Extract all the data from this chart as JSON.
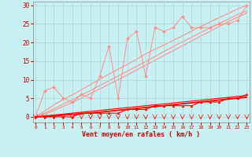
{
  "background_color": "#c8f0f0",
  "grid_color": "#a8d8d8",
  "line_color_light": "#ff9090",
  "line_color_dark": "#ff0000",
  "xlabel": "Vent moyen/en rafales ( km/h )",
  "xlabel_color": "#cc0000",
  "tick_color": "#cc0000",
  "ylim": [
    -1.5,
    31
  ],
  "xlim": [
    -0.3,
    23.3
  ],
  "yticks": [
    0,
    5,
    10,
    15,
    20,
    25,
    30
  ],
  "xticks": [
    0,
    1,
    2,
    3,
    4,
    5,
    6,
    7,
    8,
    9,
    10,
    11,
    12,
    13,
    14,
    15,
    16,
    17,
    18,
    19,
    20,
    21,
    22,
    23
  ],
  "x": [
    0,
    1,
    2,
    3,
    4,
    5,
    6,
    7,
    8,
    9,
    10,
    11,
    12,
    13,
    14,
    15,
    16,
    17,
    18,
    19,
    20,
    21,
    22,
    23
  ],
  "rafales_data": [
    0,
    7,
    8,
    5,
    4,
    6,
    5,
    11,
    19,
    5,
    21,
    23,
    11,
    24,
    23,
    24,
    27,
    24,
    24,
    24,
    25,
    25,
    26,
    30
  ],
  "moyen_data": [
    0,
    0,
    0,
    0,
    0,
    1,
    1,
    1,
    1,
    1,
    2,
    2,
    2,
    3,
    3,
    3,
    3,
    3,
    4,
    4,
    4,
    5,
    5,
    6
  ],
  "trend_r1": [
    0,
    1.6,
    3.2,
    4.7,
    5.9,
    7.3,
    8.7,
    10.1,
    11.5,
    12.8,
    14.1,
    15.5,
    16.9,
    18.2,
    19.3,
    20.6,
    21.8,
    23.1,
    24.3,
    25.5,
    26.7,
    27.8,
    29.0,
    30.0
  ],
  "trend_r2": [
    0,
    1.0,
    2.2,
    3.4,
    4.6,
    5.9,
    7.1,
    8.4,
    9.7,
    11.0,
    12.3,
    13.6,
    14.9,
    16.2,
    17.6,
    18.9,
    20.2,
    21.4,
    22.7,
    23.9,
    25.1,
    26.3,
    27.5,
    28.5
  ],
  "trend_r3": [
    0,
    0.7,
    1.7,
    2.8,
    3.9,
    5.1,
    6.3,
    7.5,
    8.8,
    10.0,
    11.3,
    12.6,
    13.9,
    15.2,
    16.5,
    17.8,
    19.1,
    20.4,
    21.7,
    23.0,
    24.3,
    25.6,
    26.8,
    28.0
  ],
  "trend_m1": [
    0,
    0.25,
    0.5,
    0.75,
    1.0,
    1.25,
    1.5,
    1.75,
    2.0,
    2.25,
    2.5,
    2.75,
    3.0,
    3.25,
    3.5,
    3.75,
    4.0,
    4.25,
    4.5,
    4.75,
    5.0,
    5.25,
    5.5,
    5.75
  ],
  "trend_m2": [
    0,
    0.15,
    0.35,
    0.55,
    0.75,
    0.95,
    1.15,
    1.35,
    1.6,
    1.85,
    2.1,
    2.35,
    2.6,
    2.85,
    3.1,
    3.35,
    3.6,
    3.85,
    4.1,
    4.35,
    4.6,
    4.85,
    5.1,
    5.35
  ],
  "trend_m3": [
    0,
    0.05,
    0.2,
    0.4,
    0.6,
    0.8,
    1.0,
    1.2,
    1.45,
    1.7,
    1.95,
    2.2,
    2.45,
    2.7,
    2.95,
    3.2,
    3.45,
    3.7,
    3.95,
    4.2,
    4.45,
    4.7,
    4.95,
    5.2
  ]
}
